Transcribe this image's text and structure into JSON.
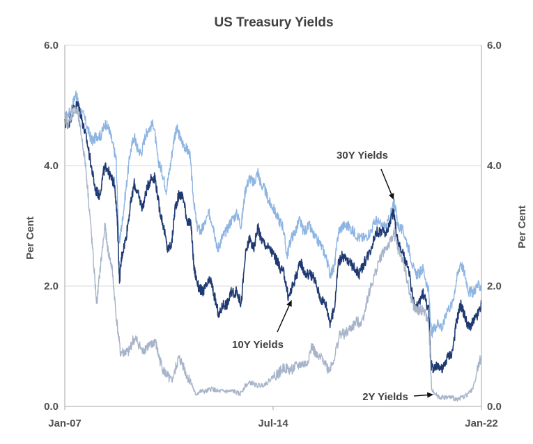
{
  "chart_data": {
    "type": "line",
    "title": "US Treasury Yields",
    "ylabel_left": "Per Cent",
    "ylabel_right": "Per Cent",
    "ylim": [
      0,
      6
    ],
    "yticks": [
      "0.0",
      "2.0",
      "4.0",
      "6.0"
    ],
    "xlim": [
      "2007-01",
      "2022-01"
    ],
    "xticks": [
      {
        "value": 2007.0,
        "label": "Jan-07"
      },
      {
        "value": 2014.5,
        "label": "Jul-14"
      },
      {
        "value": 2022.0,
        "label": "Jan-22"
      }
    ],
    "grid": "horizontal",
    "series": [
      {
        "name": "30Y Yields",
        "color": "#8db4e2",
        "values": [
          [
            2007.0,
            4.8
          ],
          [
            2007.2,
            4.9
          ],
          [
            2007.4,
            5.2
          ],
          [
            2007.5,
            5.0
          ],
          [
            2007.7,
            4.8
          ],
          [
            2007.9,
            4.5
          ],
          [
            2008.0,
            4.4
          ],
          [
            2008.15,
            4.5
          ],
          [
            2008.3,
            4.5
          ],
          [
            2008.45,
            4.7
          ],
          [
            2008.6,
            4.6
          ],
          [
            2008.75,
            4.3
          ],
          [
            2008.85,
            4.1
          ],
          [
            2008.95,
            2.7
          ],
          [
            2009.05,
            3.0
          ],
          [
            2009.2,
            3.6
          ],
          [
            2009.35,
            4.2
          ],
          [
            2009.5,
            4.5
          ],
          [
            2009.6,
            4.3
          ],
          [
            2009.75,
            4.2
          ],
          [
            2009.9,
            4.5
          ],
          [
            2010.0,
            4.6
          ],
          [
            2010.2,
            4.7
          ],
          [
            2010.35,
            4.1
          ],
          [
            2010.5,
            3.9
          ],
          [
            2010.65,
            3.6
          ],
          [
            2010.8,
            4.0
          ],
          [
            2010.95,
            4.5
          ],
          [
            2011.05,
            4.6
          ],
          [
            2011.2,
            4.4
          ],
          [
            2011.35,
            4.3
          ],
          [
            2011.5,
            4.2
          ],
          [
            2011.62,
            3.5
          ],
          [
            2011.75,
            3.0
          ],
          [
            2011.9,
            2.9
          ],
          [
            2012.0,
            3.0
          ],
          [
            2012.2,
            3.2
          ],
          [
            2012.35,
            3.0
          ],
          [
            2012.5,
            2.6
          ],
          [
            2012.65,
            2.8
          ],
          [
            2012.8,
            2.9
          ],
          [
            2013.0,
            3.1
          ],
          [
            2013.2,
            3.2
          ],
          [
            2013.35,
            3.0
          ],
          [
            2013.5,
            3.6
          ],
          [
            2013.65,
            3.8
          ],
          [
            2013.8,
            3.7
          ],
          [
            2013.95,
            3.9
          ],
          [
            2014.05,
            3.7
          ],
          [
            2014.2,
            3.6
          ],
          [
            2014.35,
            3.4
          ],
          [
            2014.5,
            3.3
          ],
          [
            2014.7,
            3.1
          ],
          [
            2014.85,
            3.0
          ],
          [
            2015.0,
            2.5
          ],
          [
            2015.15,
            2.8
          ],
          [
            2015.3,
            2.9
          ],
          [
            2015.45,
            3.1
          ],
          [
            2015.6,
            2.9
          ],
          [
            2015.8,
            3.0
          ],
          [
            2016.0,
            2.8
          ],
          [
            2016.2,
            2.7
          ],
          [
            2016.4,
            2.5
          ],
          [
            2016.55,
            2.2
          ],
          [
            2016.7,
            2.3
          ],
          [
            2016.85,
            2.9
          ],
          [
            2017.0,
            3.0
          ],
          [
            2017.2,
            3.0
          ],
          [
            2017.4,
            2.9
          ],
          [
            2017.6,
            2.8
          ],
          [
            2017.8,
            2.8
          ],
          [
            2018.0,
            2.9
          ],
          [
            2018.2,
            3.1
          ],
          [
            2018.4,
            3.0
          ],
          [
            2018.6,
            3.0
          ],
          [
            2018.8,
            3.3
          ],
          [
            2018.87,
            3.4
          ],
          [
            2019.0,
            3.0
          ],
          [
            2019.2,
            2.9
          ],
          [
            2019.4,
            2.6
          ],
          [
            2019.6,
            2.2
          ],
          [
            2019.75,
            2.2
          ],
          [
            2019.9,
            2.3
          ],
          [
            2020.1,
            1.9
          ],
          [
            2020.2,
            1.2
          ],
          [
            2020.3,
            1.3
          ],
          [
            2020.45,
            1.4
          ],
          [
            2020.6,
            1.3
          ],
          [
            2020.75,
            1.6
          ],
          [
            2020.95,
            1.7
          ],
          [
            2021.1,
            2.1
          ],
          [
            2021.25,
            2.4
          ],
          [
            2021.4,
            2.2
          ],
          [
            2021.55,
            1.9
          ],
          [
            2021.7,
            1.9
          ],
          [
            2021.85,
            2.0
          ],
          [
            2022.0,
            2.0
          ]
        ]
      },
      {
        "name": "10Y Yields",
        "color": "#1f3a73",
        "values": [
          [
            2007.0,
            4.7
          ],
          [
            2007.15,
            4.7
          ],
          [
            2007.35,
            5.0
          ],
          [
            2007.5,
            5.0
          ],
          [
            2007.65,
            4.7
          ],
          [
            2007.8,
            4.4
          ],
          [
            2007.95,
            4.0
          ],
          [
            2008.1,
            3.6
          ],
          [
            2008.25,
            3.5
          ],
          [
            2008.4,
            3.9
          ],
          [
            2008.5,
            4.0
          ],
          [
            2008.65,
            3.8
          ],
          [
            2008.8,
            3.7
          ],
          [
            2008.9,
            3.0
          ],
          [
            2008.97,
            2.1
          ],
          [
            2009.05,
            2.5
          ],
          [
            2009.2,
            2.8
          ],
          [
            2009.35,
            3.3
          ],
          [
            2009.5,
            3.7
          ],
          [
            2009.65,
            3.5
          ],
          [
            2009.8,
            3.3
          ],
          [
            2009.95,
            3.6
          ],
          [
            2010.1,
            3.8
          ],
          [
            2010.25,
            3.8
          ],
          [
            2010.4,
            3.3
          ],
          [
            2010.55,
            3.0
          ],
          [
            2010.7,
            2.6
          ],
          [
            2010.85,
            2.7
          ],
          [
            2010.97,
            3.3
          ],
          [
            2011.1,
            3.5
          ],
          [
            2011.25,
            3.5
          ],
          [
            2011.4,
            3.1
          ],
          [
            2011.55,
            3.0
          ],
          [
            2011.65,
            2.3
          ],
          [
            2011.8,
            2.0
          ],
          [
            2011.95,
            1.9
          ],
          [
            2012.1,
            2.0
          ],
          [
            2012.25,
            2.1
          ],
          [
            2012.4,
            1.8
          ],
          [
            2012.55,
            1.5
          ],
          [
            2012.7,
            1.7
          ],
          [
            2012.85,
            1.7
          ],
          [
            2013.0,
            1.9
          ],
          [
            2013.2,
            1.9
          ],
          [
            2013.35,
            1.7
          ],
          [
            2013.5,
            2.5
          ],
          [
            2013.65,
            2.8
          ],
          [
            2013.8,
            2.6
          ],
          [
            2013.95,
            3.0
          ],
          [
            2014.05,
            2.8
          ],
          [
            2014.2,
            2.7
          ],
          [
            2014.4,
            2.6
          ],
          [
            2014.55,
            2.5
          ],
          [
            2014.75,
            2.3
          ],
          [
            2014.9,
            2.2
          ],
          [
            2015.05,
            1.8
          ],
          [
            2015.2,
            2.0
          ],
          [
            2015.35,
            2.2
          ],
          [
            2015.5,
            2.4
          ],
          [
            2015.65,
            2.2
          ],
          [
            2015.85,
            2.2
          ],
          [
            2016.0,
            2.1
          ],
          [
            2016.2,
            1.8
          ],
          [
            2016.4,
            1.7
          ],
          [
            2016.55,
            1.4
          ],
          [
            2016.7,
            1.6
          ],
          [
            2016.85,
            2.4
          ],
          [
            2017.0,
            2.5
          ],
          [
            2017.2,
            2.4
          ],
          [
            2017.45,
            2.3
          ],
          [
            2017.6,
            2.2
          ],
          [
            2017.8,
            2.4
          ],
          [
            2018.0,
            2.6
          ],
          [
            2018.2,
            2.9
          ],
          [
            2018.4,
            2.9
          ],
          [
            2018.6,
            2.9
          ],
          [
            2018.8,
            3.2
          ],
          [
            2018.85,
            3.2
          ],
          [
            2019.0,
            2.7
          ],
          [
            2019.2,
            2.5
          ],
          [
            2019.4,
            2.2
          ],
          [
            2019.6,
            1.6
          ],
          [
            2019.75,
            1.7
          ],
          [
            2019.9,
            1.9
          ],
          [
            2020.1,
            1.6
          ],
          [
            2020.18,
            0.7
          ],
          [
            2020.3,
            0.6
          ],
          [
            2020.45,
            0.7
          ],
          [
            2020.6,
            0.6
          ],
          [
            2020.75,
            0.8
          ],
          [
            2020.95,
            0.9
          ],
          [
            2021.1,
            1.4
          ],
          [
            2021.25,
            1.7
          ],
          [
            2021.4,
            1.5
          ],
          [
            2021.55,
            1.3
          ],
          [
            2021.7,
            1.4
          ],
          [
            2021.85,
            1.5
          ],
          [
            2022.0,
            1.7
          ]
        ]
      },
      {
        "name": "2Y Yields",
        "color": "#a6b3c9",
        "values": [
          [
            2007.0,
            4.8
          ],
          [
            2007.15,
            4.7
          ],
          [
            2007.3,
            4.9
          ],
          [
            2007.45,
            4.9
          ],
          [
            2007.6,
            4.5
          ],
          [
            2007.75,
            4.0
          ],
          [
            2007.9,
            3.2
          ],
          [
            2008.0,
            2.6
          ],
          [
            2008.15,
            1.7
          ],
          [
            2008.3,
            2.4
          ],
          [
            2008.45,
            3.0
          ],
          [
            2008.55,
            2.6
          ],
          [
            2008.7,
            2.3
          ],
          [
            2008.85,
            1.5
          ],
          [
            2009.0,
            0.9
          ],
          [
            2009.15,
            0.9
          ],
          [
            2009.3,
            0.9
          ],
          [
            2009.45,
            1.1
          ],
          [
            2009.6,
            1.1
          ],
          [
            2009.8,
            0.9
          ],
          [
            2009.95,
            1.0
          ],
          [
            2010.1,
            1.0
          ],
          [
            2010.25,
            1.1
          ],
          [
            2010.4,
            0.8
          ],
          [
            2010.55,
            0.6
          ],
          [
            2010.7,
            0.5
          ],
          [
            2010.85,
            0.4
          ],
          [
            2010.97,
            0.6
          ],
          [
            2011.1,
            0.8
          ],
          [
            2011.25,
            0.7
          ],
          [
            2011.4,
            0.5
          ],
          [
            2011.55,
            0.4
          ],
          [
            2011.7,
            0.2
          ],
          [
            2011.9,
            0.25
          ],
          [
            2012.1,
            0.25
          ],
          [
            2012.3,
            0.3
          ],
          [
            2012.5,
            0.25
          ],
          [
            2012.7,
            0.25
          ],
          [
            2012.9,
            0.25
          ],
          [
            2013.1,
            0.25
          ],
          [
            2013.3,
            0.2
          ],
          [
            2013.5,
            0.35
          ],
          [
            2013.7,
            0.4
          ],
          [
            2013.9,
            0.35
          ],
          [
            2014.1,
            0.35
          ],
          [
            2014.3,
            0.4
          ],
          [
            2014.5,
            0.5
          ],
          [
            2014.7,
            0.55
          ],
          [
            2014.9,
            0.65
          ],
          [
            2015.1,
            0.6
          ],
          [
            2015.3,
            0.65
          ],
          [
            2015.5,
            0.7
          ],
          [
            2015.7,
            0.7
          ],
          [
            2015.9,
            1.0
          ],
          [
            2016.1,
            0.8
          ],
          [
            2016.3,
            0.8
          ],
          [
            2016.5,
            0.6
          ],
          [
            2016.7,
            0.8
          ],
          [
            2016.9,
            1.2
          ],
          [
            2017.1,
            1.2
          ],
          [
            2017.3,
            1.3
          ],
          [
            2017.5,
            1.4
          ],
          [
            2017.7,
            1.4
          ],
          [
            2017.9,
            1.8
          ],
          [
            2018.1,
            2.1
          ],
          [
            2018.3,
            2.4
          ],
          [
            2018.5,
            2.6
          ],
          [
            2018.7,
            2.7
          ],
          [
            2018.85,
            2.9
          ],
          [
            2019.0,
            2.6
          ],
          [
            2019.2,
            2.4
          ],
          [
            2019.4,
            1.9
          ],
          [
            2019.6,
            1.6
          ],
          [
            2019.75,
            1.6
          ],
          [
            2019.9,
            1.6
          ],
          [
            2020.1,
            1.4
          ],
          [
            2020.2,
            0.3
          ],
          [
            2020.35,
            0.2
          ],
          [
            2020.5,
            0.15
          ],
          [
            2020.7,
            0.15
          ],
          [
            2020.9,
            0.15
          ],
          [
            2021.1,
            0.12
          ],
          [
            2021.3,
            0.15
          ],
          [
            2021.5,
            0.2
          ],
          [
            2021.7,
            0.3
          ],
          [
            2021.85,
            0.6
          ],
          [
            2022.0,
            0.85
          ]
        ]
      }
    ],
    "annotations": [
      {
        "text": "30Y Yields",
        "target": [
          2018.87,
          3.4
        ]
      },
      {
        "text": "10Y Yields",
        "target": [
          2015.2,
          1.8
        ]
      },
      {
        "text": "2Y Yields",
        "target": [
          2020.35,
          0.2
        ]
      }
    ]
  }
}
